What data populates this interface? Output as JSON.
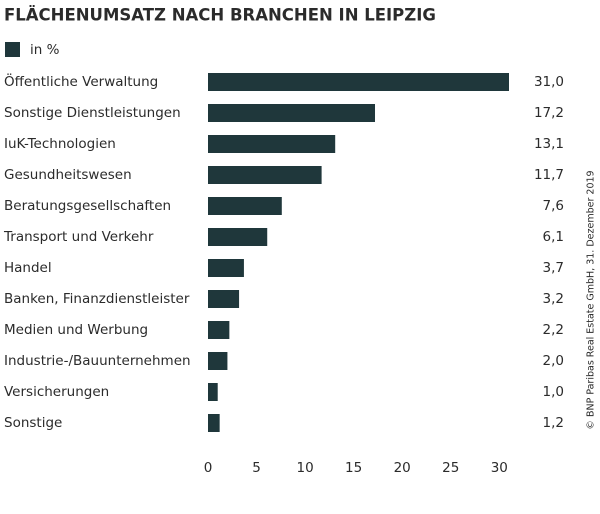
{
  "chart_data": {
    "type": "hbar",
    "title": "FLÄCHENUMSATZ NACH BRANCHEN IN LEIPZIG",
    "source": "© BNP Paribas Real Estate GmbH, 31. Dezember 2019",
    "categories": [
      "Öffentliche Verwaltung",
      "Sonstige Dienstleistungen",
      "IuK-Technologien",
      "Gesundheitswesen",
      "Beratungsgesellschaften",
      "Transport und Verkehr",
      "Handel",
      "Banken, Finanzdienstleister",
      "Medien und Werbung",
      "Industrie-/Bauunternehmen",
      "Versicherungen",
      "Sonstige"
    ],
    "series": [
      {
        "name": "in %",
        "color": "#1f373b",
        "values": [
          31.0,
          17.2,
          13.1,
          11.7,
          7.6,
          6.1,
          3.7,
          3.2,
          2.2,
          2.0,
          1.0,
          1.2
        ],
        "value_labels": [
          "31,0",
          "17,2",
          "13,1",
          "11,7",
          "7,6",
          "6,1",
          "3,7",
          "3,2",
          "2,2",
          "2,0",
          "1,0",
          "1,2"
        ]
      }
    ],
    "xlim": [
      0,
      31
    ],
    "xticks": [
      0,
      5,
      10,
      15,
      20,
      25,
      30
    ],
    "grid": false
  }
}
